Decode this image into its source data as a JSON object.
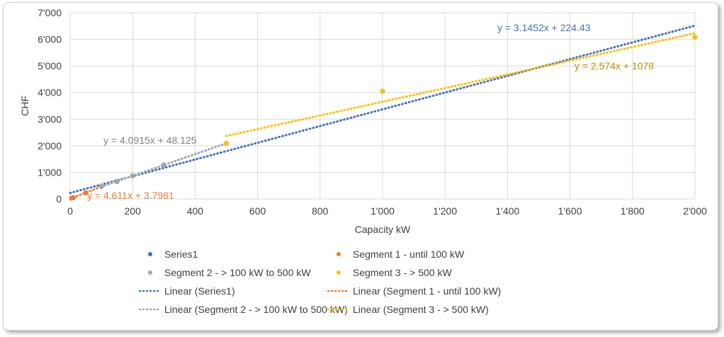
{
  "chart_data": {
    "type": "scatter",
    "xlabel": "Capacity kW",
    "ylabel": "CHF",
    "xlim": [
      0,
      2000
    ],
    "ylim": [
      0,
      7000
    ],
    "x_ticks": [
      "0",
      "200",
      "400",
      "600",
      "800",
      "1'000",
      "1'200",
      "1'400",
      "1'600",
      "1'800",
      "2'000"
    ],
    "x_tick_values": [
      0,
      200,
      400,
      600,
      800,
      1000,
      1200,
      1400,
      1600,
      1800,
      2000
    ],
    "y_ticks": [
      "0",
      "1'000",
      "2'000",
      "3'000",
      "4'000",
      "5'000",
      "6'000",
      "7'000"
    ],
    "y_tick_values": [
      0,
      1000,
      2000,
      3000,
      4000,
      5000,
      6000,
      7000
    ],
    "grid": true,
    "legend_position": "bottom",
    "series": [
      {
        "name": "Series1",
        "color": "#4472C4",
        "x": [
          5,
          10,
          50,
          100,
          150,
          200,
          300,
          500,
          1000,
          2000
        ],
        "y": [
          30,
          50,
          230,
          470,
          650,
          870,
          1280,
          2090,
          4050,
          6080
        ]
      },
      {
        "name": "Segment 1 - until 100 kW",
        "color": "#ED7D31",
        "x": [
          5,
          10,
          50,
          100
        ],
        "y": [
          30,
          50,
          230,
          470
        ]
      },
      {
        "name": "Segment 2 - > 100 kW to 500 kW",
        "color": "#A5A5A5",
        "x": [
          100,
          150,
          200,
          300
        ],
        "y": [
          470,
          650,
          870,
          1280
        ]
      },
      {
        "name": "Segment 3 - > 500 kW",
        "color": "#FFC000",
        "x": [
          500,
          1000,
          2000
        ],
        "y": [
          2090,
          4050,
          6080
        ]
      }
    ],
    "trendlines": [
      {
        "name": "Linear (Series1)",
        "color": "#4472C4",
        "label_color": "#4472C4",
        "slope": 3.1452,
        "intercept": 224.43,
        "range": [
          0,
          2000
        ],
        "equation": "y = 3.1452x + 224.43"
      },
      {
        "name": "Linear (Segment 1 - until 100 kW)",
        "color": "#ED7D31",
        "label_color": "#ED7D31",
        "slope": 4.611,
        "intercept": 3.7981,
        "range": [
          0,
          100
        ],
        "equation": "y = 4.611x + 3.7981"
      },
      {
        "name": "Linear (Segment 2 - > 100 kW to 500 kW)",
        "color": "#A5A5A5",
        "label_color": "#808080",
        "slope": 4.0915,
        "intercept": 48.125,
        "range": [
          100,
          500
        ],
        "equation": "y = 4.0915x + 48.125"
      },
      {
        "name": "Linear (Segment 3 - > 500 kW)",
        "color": "#FFC000",
        "label_color": "#BF9000",
        "slope": 2.574,
        "intercept": 1078,
        "range": [
          500,
          2000
        ],
        "equation": "y = 2.574x + 1078"
      }
    ]
  }
}
